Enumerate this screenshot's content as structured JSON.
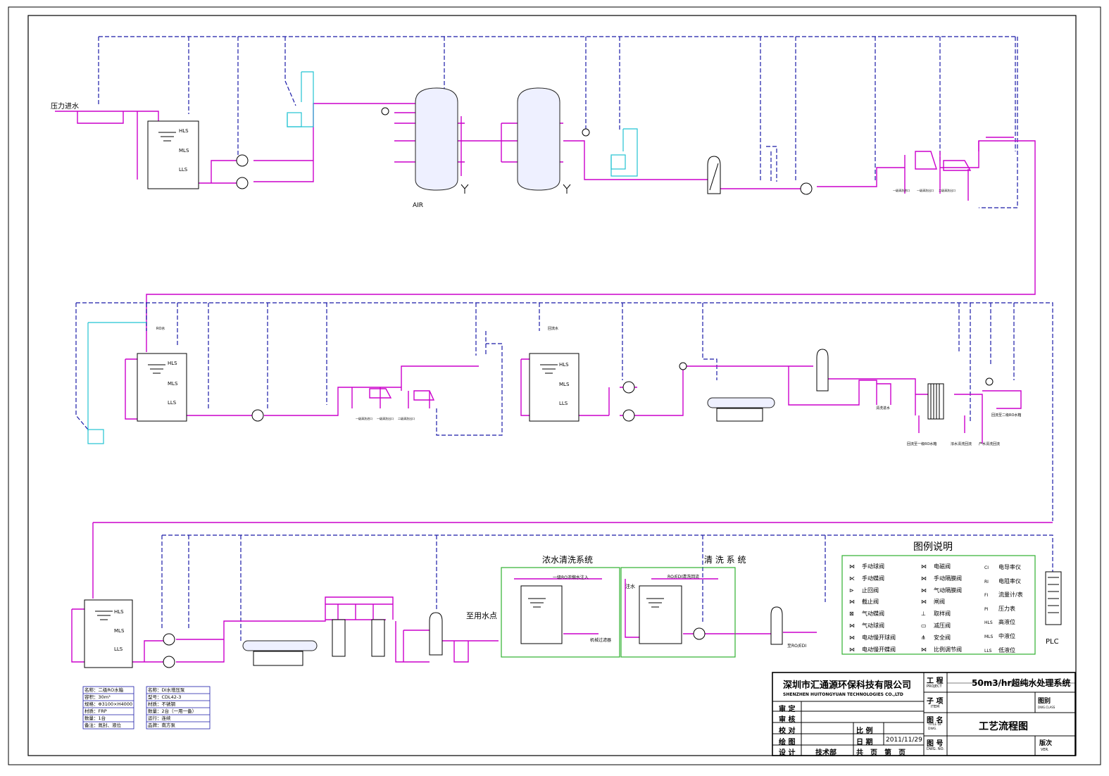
{
  "labels": {
    "inlet": "压力进水",
    "air": "AIR",
    "to_use": "至用水点",
    "plc": "PLC"
  },
  "tank_levels": [
    "HLS",
    "MLS",
    "LLS"
  ],
  "tank_top_labels": [
    "RO水",
    "回流水"
  ],
  "section_boxes": [
    {
      "title": "浓水清洗系统",
      "inject": "一级RO浓缩水注入",
      "outlet": "机械过滤器"
    },
    {
      "title": "清 洗 系 统",
      "inject": "RO/EDI清洗回流",
      "inlet": "注水",
      "outlet": "至RO/EDI"
    }
  ],
  "bottom_notes": [
    "回流至一级RO水箱",
    "浓水清洗回流",
    "产水清洗回流",
    "回流至二级RO水箱",
    "清洗进水"
  ],
  "clean_notes": [
    "一级清洗进口",
    "一级清洗出口",
    "二级清洗出口"
  ],
  "spec_table_1": [
    {
      "k": "名称：",
      "v": "二级RO水箱"
    },
    {
      "k": "容积：",
      "v": "30m³"
    },
    {
      "k": "规格：",
      "v": "Φ3100×H4000"
    },
    {
      "k": "材质：",
      "v": "FRP"
    },
    {
      "k": "数量：",
      "v": "1台"
    },
    {
      "k": "备注：",
      "v": "氮封、液位"
    }
  ],
  "spec_table_2": [
    {
      "k": "名称：",
      "v": "DI水增压泵"
    },
    {
      "k": "型号：",
      "v": "CDL42-3"
    },
    {
      "k": "材质：",
      "v": "不锈钢"
    },
    {
      "k": "数量：",
      "v": "2台（一用一备）"
    },
    {
      "k": "运行：",
      "v": "连续"
    },
    {
      "k": "品牌：",
      "v": "南方泵"
    }
  ],
  "legend": {
    "title": "图例说明",
    "col1": [
      {
        "icon": "ball-valve-icon",
        "glyph": "⋈",
        "text": "手动球阀"
      },
      {
        "icon": "butterfly-valve-icon",
        "glyph": "⋉",
        "text": "手动蝶阀"
      },
      {
        "icon": "check-valve-icon",
        "glyph": "⊳",
        "text": "止回阀"
      },
      {
        "icon": "stop-valve-icon",
        "glyph": "⋈",
        "text": "截止阀"
      },
      {
        "icon": "pneumatic-butterfly-icon",
        "glyph": "⊠",
        "text": "气动蝶阀"
      },
      {
        "icon": "pneumatic-ball-icon",
        "glyph": "⋈",
        "text": "气动球阀"
      },
      {
        "icon": "electric-slow-ball-icon",
        "glyph": "⋈",
        "text": "电动慢开球阀"
      },
      {
        "icon": "electric-slow-butterfly-icon",
        "glyph": "⋈",
        "text": "电动慢开蝶阀"
      }
    ],
    "col2": [
      {
        "icon": "solenoid-valve-icon",
        "glyph": "⋈",
        "text": "电磁阀"
      },
      {
        "icon": "manual-diaphragm-icon",
        "glyph": "⋈",
        "text": "手动隔膜阀"
      },
      {
        "icon": "pneumatic-diaphragm-icon",
        "glyph": "⋈",
        "text": "气动隔膜阀"
      },
      {
        "icon": "gate-valve-icon",
        "glyph": "⋈",
        "text": "闸阀"
      },
      {
        "icon": "sampling-valve-icon",
        "glyph": "⊥",
        "text": "取样阀"
      },
      {
        "icon": "pressure-reducing-icon",
        "glyph": "▭",
        "text": "减压阀"
      },
      {
        "icon": "safety-valve-icon",
        "glyph": "⋔",
        "text": "安全阀"
      },
      {
        "icon": "proportional-valve-icon",
        "glyph": "⋈",
        "text": "比例调节阀"
      }
    ],
    "col3": [
      {
        "icon": "conductivity-icon",
        "glyph": "CI",
        "text": "电导率仪"
      },
      {
        "icon": "resistivity-icon",
        "glyph": "RI",
        "text": "电阻率仪"
      },
      {
        "icon": "flowmeter-icon",
        "glyph": "FI",
        "text": "流量计/表"
      },
      {
        "icon": "pressure-gauge-icon",
        "glyph": "PI",
        "text": "压力表"
      },
      {
        "icon": "high-level-icon",
        "glyph": "HLS",
        "text": "高液位"
      },
      {
        "icon": "mid-level-icon",
        "glyph": "MLS",
        "text": "中液位"
      },
      {
        "icon": "low-level-icon",
        "glyph": "LLS",
        "text": "低液位"
      }
    ]
  },
  "title_block": {
    "company_cn": "深圳市汇通源环保科技有限公司",
    "company_en": "SHENZHEN HUITONGYUAN TECHNOLOGIES CO.,LTD",
    "project_label": "工 程",
    "project_label_en": "PROJECT",
    "project_value": "50m3/hr超纯水处理系统",
    "item_label": "子 项",
    "item_label_en": "ITEM",
    "drawing_type_label": "图别",
    "drawing_type_label_en": "DWG.CLASS",
    "rows": [
      {
        "label": "审 定"
      },
      {
        "label": "审 核"
      },
      {
        "label": "校 对"
      },
      {
        "label": "绘 图"
      },
      {
        "label": "设 计"
      }
    ],
    "scale_label": "比 例",
    "date_label": "日 期",
    "date_value": "2011/11/29",
    "dept_value": "技术部",
    "pages_label": "共　页　第　页",
    "title_label": "图 名",
    "title_label_en": "TITLE OF DWG.",
    "title_value": "工艺流程图",
    "dwg_no_label": "图 号",
    "dwg_no_label_en": "DWG. NO.",
    "version_label": "版次",
    "version_label_en": "VER."
  }
}
